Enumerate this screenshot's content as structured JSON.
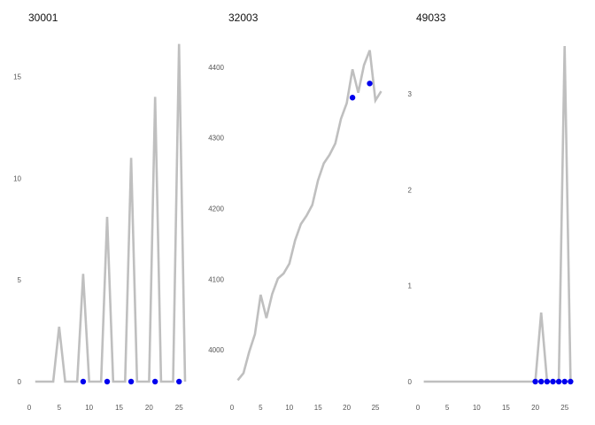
{
  "chart_data": [
    {
      "type": "line",
      "title": "30001",
      "xlabel": "",
      "ylabel": "",
      "xlim": [
        0,
        26
      ],
      "ylim": [
        0,
        16.5
      ],
      "xticks": [
        0,
        5,
        10,
        15,
        20,
        25
      ],
      "yticks": [
        0,
        5,
        10,
        15
      ],
      "grid": false,
      "x": [
        1,
        2,
        3,
        4,
        5,
        6,
        7,
        8,
        9,
        10,
        11,
        12,
        13,
        14,
        15,
        16,
        17,
        18,
        19,
        20,
        21,
        22,
        23,
        24,
        25,
        26
      ],
      "series": [
        {
          "values": [
            0,
            0,
            0,
            0,
            2.7,
            0,
            0,
            0,
            5.3,
            0,
            0,
            0,
            8.1,
            0,
            0,
            0,
            11,
            0,
            0,
            0,
            14,
            0,
            0,
            0,
            16.6,
            0
          ],
          "color": "#bfbfbf"
        }
      ],
      "points": {
        "x": [
          9,
          13,
          17,
          21,
          25
        ],
        "y": [
          0,
          0,
          0,
          0,
          0
        ],
        "color": "#0000ee"
      }
    },
    {
      "type": "line",
      "title": "32003",
      "xlabel": "",
      "ylabel": "",
      "xlim": [
        0,
        27
      ],
      "ylim": [
        3955,
        4430
      ],
      "xticks": [
        0,
        5,
        10,
        15,
        20,
        25
      ],
      "yticks": [
        4000,
        4100,
        4200,
        4300,
        4400
      ],
      "grid": false,
      "x": [
        1,
        2,
        3,
        4,
        5,
        6,
        7,
        8,
        9,
        10,
        11,
        12,
        13,
        14,
        15,
        16,
        17,
        18,
        19,
        20,
        21,
        22,
        23,
        24,
        25,
        26
      ],
      "series": [
        {
          "values": [
            3957,
            3967,
            3997,
            4022,
            4078,
            4045,
            4079,
            4101,
            4108,
            4122,
            4155,
            4178,
            4190,
            4205,
            4240,
            4264,
            4276,
            4292,
            4327,
            4349,
            4397,
            4364,
            4403,
            4424,
            4353,
            4366
          ],
          "color": "#bfbfbf"
        }
      ],
      "points": {
        "x": [
          21,
          24
        ],
        "y": [
          4357,
          4377
        ],
        "color": "#0000ee"
      }
    },
    {
      "type": "line",
      "title": "49033",
      "xlabel": "",
      "ylabel": "",
      "xlim": [
        0,
        27
      ],
      "ylim": [
        0,
        3.5
      ],
      "xticks": [
        0,
        5,
        10,
        15,
        20,
        25
      ],
      "yticks": [
        0,
        1,
        2,
        3
      ],
      "grid": false,
      "x": [
        1,
        2,
        3,
        4,
        5,
        6,
        7,
        8,
        9,
        10,
        11,
        12,
        13,
        14,
        15,
        16,
        17,
        18,
        19,
        20,
        21,
        22,
        23,
        24,
        25,
        26
      ],
      "series": [
        {
          "values": [
            0,
            0,
            0,
            0,
            0,
            0,
            0,
            0,
            0,
            0,
            0,
            0,
            0,
            0,
            0,
            0,
            0,
            0,
            0,
            0,
            0.72,
            0,
            0,
            0,
            3.5,
            0
          ],
          "color": "#bfbfbf"
        }
      ],
      "points": {
        "x": [
          20,
          21,
          22,
          23,
          24,
          25,
          26
        ],
        "y": [
          0,
          0,
          0,
          0,
          0,
          0,
          0
        ],
        "color": "#0000ee"
      }
    }
  ]
}
